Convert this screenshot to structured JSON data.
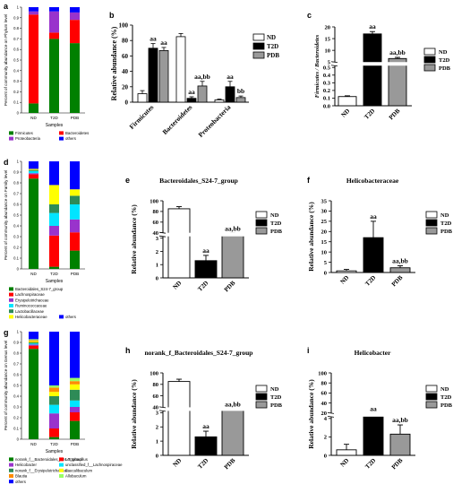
{
  "panel_labels": [
    "a",
    "b",
    "c",
    "d",
    "e",
    "f",
    "g",
    "h",
    "i"
  ],
  "chart_data": [
    {
      "id": "a",
      "type": "bar",
      "stacked": true,
      "ylabel": "Percent of community abundance on Phylum level",
      "xlabel": "Samples",
      "categories": [
        "ND",
        "T2D",
        "PDB"
      ],
      "ylim": [
        0,
        1
      ],
      "yticks": [
        "0",
        "0.1",
        "0.2",
        "0.3",
        "0.4",
        "0.5",
        "0.6",
        "0.7",
        "0.8",
        "0.9",
        "1"
      ],
      "series": [
        {
          "name": "Firmicutes",
          "color": "#008000",
          "values": [
            0.09,
            0.7,
            0.66
          ]
        },
        {
          "name": "Bacteroidetes",
          "color": "#ff0000",
          "values": [
            0.84,
            0.06,
            0.22
          ]
        },
        {
          "name": "Proteobacteria",
          "color": "#9933cc",
          "values": [
            0.03,
            0.2,
            0.07
          ]
        },
        {
          "name": "others",
          "color": "#0000ff",
          "values": [
            0.04,
            0.04,
            0.05
          ]
        }
      ]
    },
    {
      "id": "b",
      "type": "bar",
      "grouped": true,
      "ylabel": "Relative abundance (%)",
      "categories": [
        "Firmicutes",
        "Bacteroidetes",
        "Proteobacteria"
      ],
      "ylim": [
        0,
        100
      ],
      "yticks": [
        "0",
        "20",
        "40",
        "60",
        "80",
        "100"
      ],
      "series": [
        {
          "name": "ND",
          "fill": "#ffffff",
          "values": [
            11,
            85,
            3
          ],
          "errors": [
            4,
            4,
            1
          ],
          "labels": [
            "",
            "",
            ""
          ]
        },
        {
          "name": "T2D",
          "fill": "#000000",
          "values": [
            70,
            5,
            20
          ],
          "errors": [
            6,
            2,
            7
          ],
          "labels": [
            "aa",
            "aa",
            "aa"
          ]
        },
        {
          "name": "PDB",
          "fill": "#999999",
          "values": [
            67,
            21,
            6
          ],
          "errors": [
            4,
            6,
            2
          ],
          "labels": [
            "aa",
            "aa,bb",
            "bb"
          ]
        }
      ]
    },
    {
      "id": "c",
      "type": "bar",
      "ylabel": "Firmicutes / Bacteroidetes",
      "categories": [
        "ND",
        "T2D",
        "PDB"
      ],
      "values": [
        0.12,
        17,
        6.5
      ],
      "errors": [
        0.01,
        1,
        0.5
      ],
      "fills": [
        "#ffffff",
        "#000000",
        "#999999"
      ],
      "labels": [
        "",
        "aa",
        "aa,bb"
      ],
      "axis_break": true,
      "yticks_lower": [
        "0.0",
        "0.1",
        "0.2",
        "0.3",
        "0.4",
        "0.5"
      ],
      "yticks_upper": [
        "5",
        "10",
        "15",
        "20"
      ],
      "legend": [
        "ND",
        "T2D",
        "PDB"
      ]
    },
    {
      "id": "d",
      "type": "bar",
      "stacked": true,
      "ylabel": "Percent of community abundance on Family level",
      "xlabel": "Samples",
      "categories": [
        "ND",
        "T2D",
        "PDB"
      ],
      "ylim": [
        0,
        1
      ],
      "yticks": [
        "0",
        "0.1",
        "0.2",
        "0.3",
        "0.4",
        "0.5",
        "0.6",
        "0.7",
        "0.8",
        "0.9",
        "1"
      ],
      "series": [
        {
          "name": "Bacteroidales_S24-7_group",
          "color": "#008000",
          "values": [
            0.84,
            0.02,
            0.17
          ]
        },
        {
          "name": "Lachnospiraceae",
          "color": "#ff0000",
          "values": [
            0.04,
            0.29,
            0.17
          ]
        },
        {
          "name": "Erysipelotrichaceae",
          "color": "#9933cc",
          "values": [
            0.01,
            0.09,
            0.12
          ]
        },
        {
          "name": "Ruminococcaceae",
          "color": "#00e5ff",
          "values": [
            0.02,
            0.12,
            0.14
          ]
        },
        {
          "name": "Lactobacillaceae",
          "color": "#2e8b57",
          "values": [
            0.01,
            0.08,
            0.08
          ]
        },
        {
          "name": "Helicobacteraceae",
          "color": "#ffff00",
          "values": [
            0.01,
            0.18,
            0.06
          ]
        },
        {
          "name": "others",
          "color": "#0000ff",
          "values": [
            0.07,
            0.22,
            0.26
          ]
        }
      ]
    },
    {
      "id": "e",
      "type": "bar",
      "title": "Bacteroidales_S24-7_group",
      "ylabel": "Relative abundance (%)",
      "categories": [
        "ND",
        "T2D",
        "PDB"
      ],
      "values": [
        85,
        1.3,
        37
      ],
      "errors": [
        4,
        0.4,
        2
      ],
      "fills": [
        "#ffffff",
        "#000000",
        "#999999"
      ],
      "labels": [
        "",
        "aa",
        "aa,bb"
      ],
      "axis_break": true,
      "yticks_lower": [
        "0",
        "1",
        "2",
        "3"
      ],
      "yticks_upper": [
        "40",
        "60",
        "80",
        "100"
      ],
      "legend": [
        "ND",
        "T2D",
        "PDB"
      ]
    },
    {
      "id": "f",
      "type": "bar",
      "title": "Helicobacteraceae",
      "ylabel": "Relative abundance (%)",
      "categories": [
        "ND",
        "T2D",
        "PDB"
      ],
      "values": [
        0.8,
        17,
        2.3
      ],
      "errors": [
        0.7,
        8,
        1
      ],
      "fills": [
        "#ffffff",
        "#000000",
        "#999999"
      ],
      "labels": [
        "",
        "aa",
        "aa,bb"
      ],
      "ylim": [
        0,
        35
      ],
      "yticks": [
        "0",
        "5",
        "10",
        "15",
        "20",
        "25",
        "30",
        "35"
      ],
      "legend": [
        "ND",
        "T2D",
        "PDB"
      ]
    },
    {
      "id": "g",
      "type": "bar",
      "stacked": true,
      "ylabel": "Percent of community abundance on Genus level",
      "xlabel": "Samples",
      "categories": [
        "ND",
        "T2D",
        "PDB"
      ],
      "ylim": [
        0,
        1
      ],
      "yticks": [
        "0",
        "0.1",
        "0.2",
        "0.3",
        "0.4",
        "0.5",
        "0.6",
        "0.7",
        "0.8",
        "0.9",
        "1"
      ],
      "series": [
        {
          "name": "norank_f__Bacteroidales_S24-7_group",
          "color": "#008000",
          "values": [
            0.84,
            0.02,
            0.17
          ]
        },
        {
          "name": "Lactobacillus",
          "color": "#ff0000",
          "values": [
            0.03,
            0.08,
            0.08
          ]
        },
        {
          "name": "Helicobacter",
          "color": "#9933cc",
          "values": [
            0.01,
            0.14,
            0.05
          ]
        },
        {
          "name": "unclassified_f__Lachnospiraceae",
          "color": "#00e5ff",
          "values": [
            0.01,
            0.08,
            0.06
          ]
        },
        {
          "name": "norank_f__Erysipelotrichaceae",
          "color": "#2e8b57",
          "values": [
            0.01,
            0.08,
            0.1
          ]
        },
        {
          "name": "Faecalibaculum",
          "color": "#ffff00",
          "values": [
            0.01,
            0.04,
            0.05
          ]
        },
        {
          "name": "Blautia",
          "color": "#ff8c00",
          "values": [
            0.01,
            0.04,
            0.03
          ]
        },
        {
          "name": "Allobaculum",
          "color": "#99ff66",
          "values": [
            0.01,
            0.02,
            0.03
          ]
        },
        {
          "name": "others",
          "color": "#0000ff",
          "values": [
            0.07,
            0.5,
            0.43
          ]
        }
      ]
    },
    {
      "id": "h",
      "type": "bar",
      "title": "norank_f_Bacteroidales_S24-7_group",
      "ylabel": "Relative abundance (%)",
      "categories": [
        "ND",
        "T2D",
        "PDB"
      ],
      "values": [
        85,
        1.3,
        35
      ],
      "errors": [
        4,
        0.4,
        2
      ],
      "fills": [
        "#ffffff",
        "#000000",
        "#999999"
      ],
      "labels": [
        "",
        "aa",
        "aa,bb"
      ],
      "axis_break": true,
      "yticks_lower": [
        "0",
        "1",
        "2",
        "3"
      ],
      "yticks_upper": [
        "40",
        "60",
        "80",
        "100"
      ],
      "legend": [
        "ND",
        "T2D",
        "PDB"
      ]
    },
    {
      "id": "i",
      "type": "bar",
      "title": "Helicobacter",
      "ylabel": "Relative abundance (%)",
      "categories": [
        "ND",
        "T2D",
        "PDB"
      ],
      "values": [
        0.6,
        14,
        2.3
      ],
      "errors": [
        0.6,
        5,
        1
      ],
      "fills": [
        "#ffffff",
        "#000000",
        "#999999"
      ],
      "labels": [
        "",
        "aa",
        "aa,bb"
      ],
      "axis_break": true,
      "yticks_lower": [
        "0",
        "2",
        "4"
      ],
      "yticks_upper": [
        "20",
        "40",
        "60",
        "80",
        "100"
      ],
      "legend": [
        "ND",
        "T2D",
        "PDB"
      ]
    }
  ]
}
